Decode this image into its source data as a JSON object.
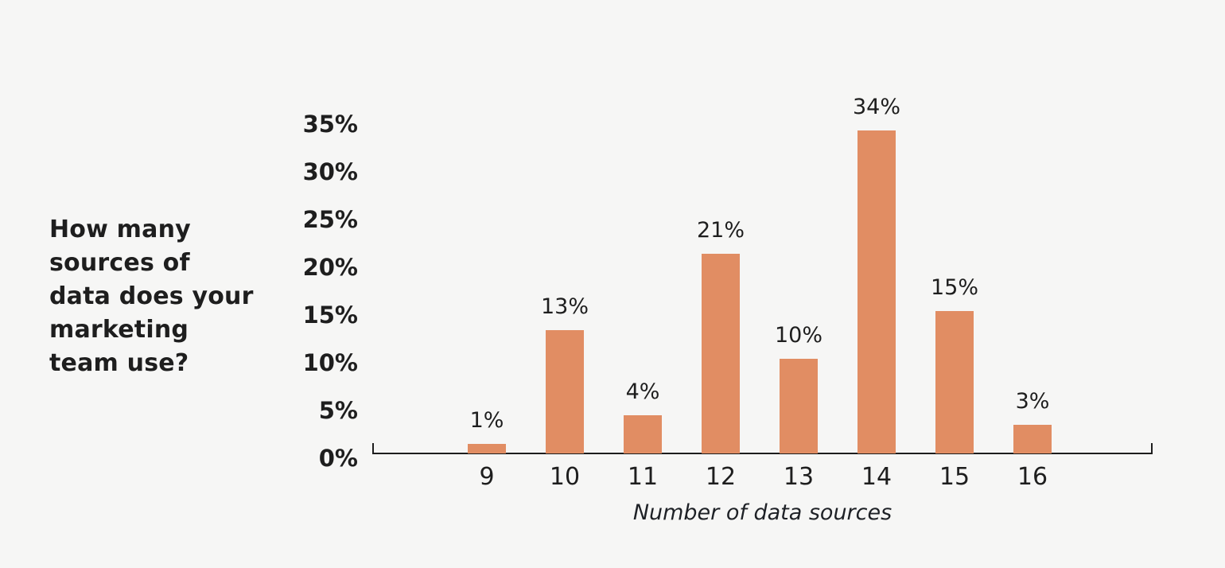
{
  "page": {
    "background_color": "#f6f6f5"
  },
  "title": {
    "text": "How many sources of data does your marketing team use?",
    "lines": [
      "How many",
      "sources of",
      "data does your",
      "marketing",
      "team use?"
    ]
  },
  "chart_data": {
    "type": "bar",
    "title": "How many sources of data does your marketing team use?",
    "categories": [
      "9",
      "10",
      "11",
      "12",
      "13",
      "14",
      "15",
      "16"
    ],
    "values": [
      1,
      13,
      4,
      21,
      10,
      34,
      15,
      3
    ],
    "value_labels": [
      "1%",
      "13%",
      "4%",
      "21%",
      "10%",
      "34%",
      "15%",
      "3%"
    ],
    "xlabel": "Number of data sources",
    "ylabel": "",
    "y_ticks": [
      {
        "value": 35,
        "label": "35%"
      },
      {
        "value": 30,
        "label": "30%"
      },
      {
        "value": 25,
        "label": "25%"
      },
      {
        "value": 20,
        "label": "20%"
      },
      {
        "value": 15,
        "label": "15%"
      },
      {
        "value": 10,
        "label": "10%"
      },
      {
        "value": 5,
        "label": "5%"
      },
      {
        "value": 0,
        "label": "0%"
      }
    ],
    "ylim": [
      0,
      35
    ],
    "grid": false,
    "legend": "none",
    "colors": {
      "bar": "#e18d63",
      "text": "#1e1e1e",
      "axis": "#1d1d1d",
      "background": "#f6f6f5"
    }
  }
}
